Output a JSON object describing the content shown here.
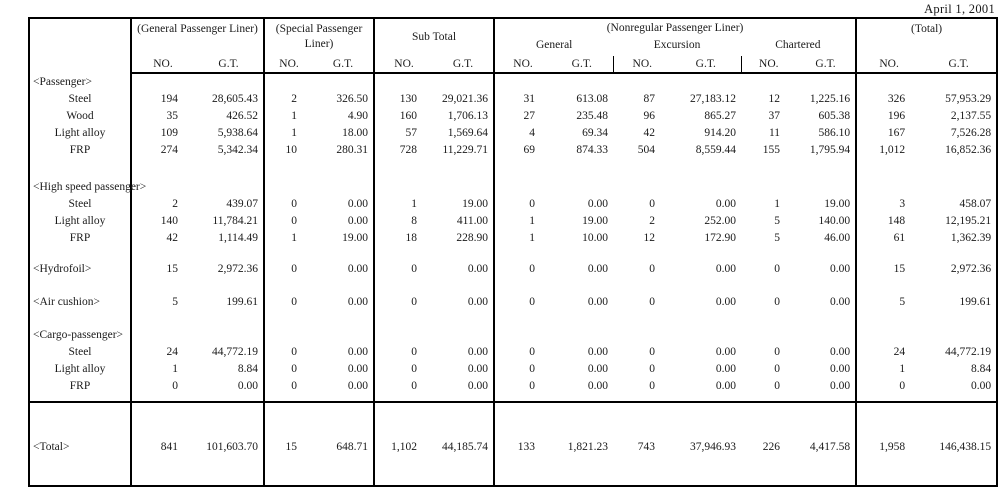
{
  "date_label": "April 1, 2001",
  "header": {
    "no_label": "NO.",
    "gt_label": "G.T.",
    "groups": [
      {
        "label": "(General Passenger Liner)"
      },
      {
        "label": "(Special Passenger Liner)"
      },
      {
        "label": "Sub Total"
      },
      {
        "label": "(Nonregular Passenger Liner)",
        "subgroups": [
          "General",
          "Excursion",
          "Chartered"
        ]
      },
      {
        "label": "(Total)"
      }
    ]
  },
  "sections": [
    {
      "label": "<Passenger>",
      "rows": [
        {
          "label": "Steel",
          "values": [
            "194",
            "28,605.43",
            "2",
            "326.50",
            "130",
            "29,021.36",
            "31",
            "613.08",
            "87",
            "27,183.12",
            "12",
            "1,225.16",
            "326",
            "57,953.29"
          ]
        },
        {
          "label": "Wood",
          "values": [
            "35",
            "426.52",
            "1",
            "4.90",
            "160",
            "1,706.13",
            "27",
            "235.48",
            "96",
            "865.27",
            "37",
            "605.38",
            "196",
            "2,137.55"
          ]
        },
        {
          "label": "Light alloy",
          "values": [
            "109",
            "5,938.64",
            "1",
            "18.00",
            "57",
            "1,569.64",
            "4",
            "69.34",
            "42",
            "914.20",
            "11",
            "586.10",
            "167",
            "7,526.28"
          ]
        },
        {
          "label": "FRP",
          "values": [
            "274",
            "5,342.34",
            "10",
            "280.31",
            "728",
            "11,229.71",
            "69",
            "874.33",
            "504",
            "8,559.44",
            "155",
            "1,795.94",
            "1,012",
            "16,852.36"
          ]
        }
      ]
    },
    {
      "label": "<High speed passenger>",
      "rows": [
        {
          "label": "Steel",
          "values": [
            "2",
            "439.07",
            "0",
            "0.00",
            "1",
            "19.00",
            "0",
            "0.00",
            "0",
            "0.00",
            "1",
            "19.00",
            "3",
            "458.07"
          ]
        },
        {
          "label": "Light alloy",
          "values": [
            "140",
            "11,784.21",
            "0",
            "0.00",
            "8",
            "411.00",
            "1",
            "19.00",
            "2",
            "252.00",
            "5",
            "140.00",
            "148",
            "12,195.21"
          ]
        },
        {
          "label": "FRP",
          "values": [
            "42",
            "1,114.49",
            "1",
            "19.00",
            "18",
            "228.90",
            "1",
            "10.00",
            "12",
            "172.90",
            "5",
            "46.00",
            "61",
            "1,362.39"
          ]
        }
      ]
    },
    {
      "label": "<Hydrofoil>",
      "values": [
        "15",
        "2,972.36",
        "0",
        "0.00",
        "0",
        "0.00",
        "0",
        "0.00",
        "0",
        "0.00",
        "0",
        "0.00",
        "15",
        "2,972.36"
      ],
      "rows": []
    },
    {
      "label": "<Air cushion>",
      "values": [
        "5",
        "199.61",
        "0",
        "0.00",
        "0",
        "0.00",
        "0",
        "0.00",
        "0",
        "0.00",
        "0",
        "0.00",
        "5",
        "199.61"
      ],
      "rows": []
    },
    {
      "label": "<Cargo-passenger>",
      "rows": [
        {
          "label": "Steel",
          "values": [
            "24",
            "44,772.19",
            "0",
            "0.00",
            "0",
            "0.00",
            "0",
            "0.00",
            "0",
            "0.00",
            "0",
            "0.00",
            "24",
            "44,772.19"
          ]
        },
        {
          "label": "Light alloy",
          "values": [
            "1",
            "8.84",
            "0",
            "0.00",
            "0",
            "0.00",
            "0",
            "0.00",
            "0",
            "0.00",
            "0",
            "0.00",
            "1",
            "8.84"
          ]
        },
        {
          "label": "FRP",
          "values": [
            "0",
            "0.00",
            "0",
            "0.00",
            "0",
            "0.00",
            "0",
            "0.00",
            "0",
            "0.00",
            "0",
            "0.00",
            "0",
            "0.00"
          ]
        }
      ]
    }
  ],
  "total": {
    "label": "<Total>",
    "values": [
      "841",
      "101,603.70",
      "15",
      "648.71",
      "1,102",
      "44,185.74",
      "133",
      "1,821.23",
      "743",
      "37,946.93",
      "226",
      "4,417.58",
      "1,958",
      "146,438.15"
    ]
  }
}
